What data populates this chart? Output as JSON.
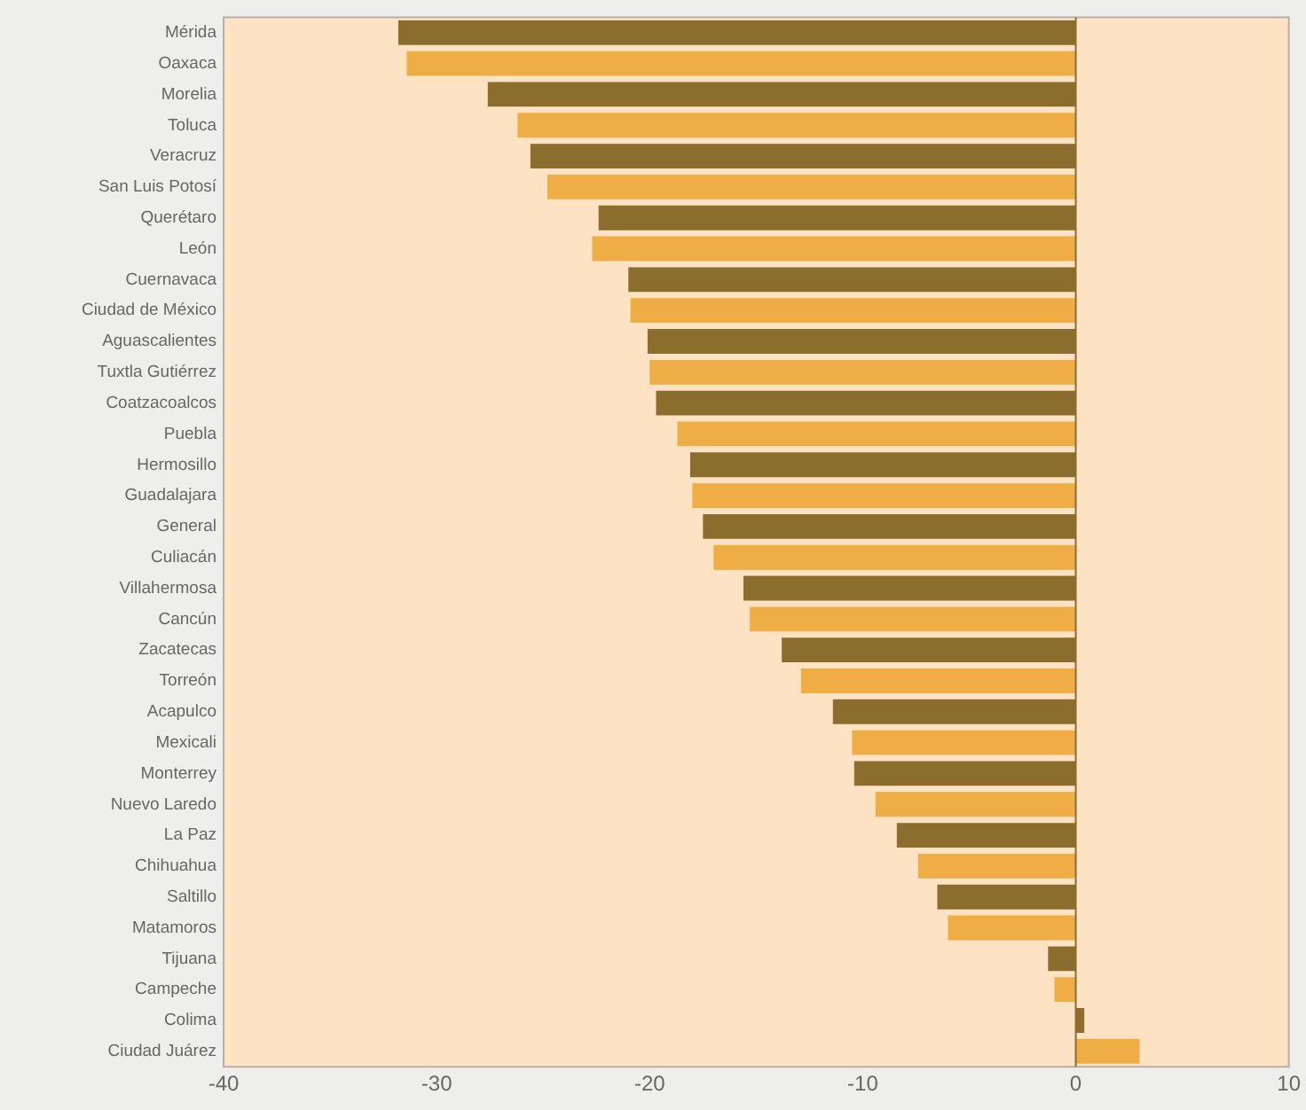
{
  "chart_data": {
    "type": "bar",
    "orientation": "horizontal",
    "categories": [
      "Mérida",
      "Oaxaca",
      "Morelia",
      "Toluca",
      "Veracruz",
      "San Luis Potosí",
      "Querétaro",
      "León",
      "Cuernavaca",
      "Ciudad de México",
      "Aguascalientes",
      "Tuxtla Gutiérrez",
      "Coatzacoalcos",
      "Puebla",
      "Hermosillo",
      "Guadalajara",
      "General",
      "Culiacán",
      "Villahermosa",
      "Cancún",
      "Zacatecas",
      "Torreón",
      "Acapulco",
      "Mexicali",
      "Monterrey",
      "Nuevo Laredo",
      "La Paz",
      "Chihuahua",
      "Saltillo",
      "Matamoros",
      "Tijuana",
      "Campeche",
      "Colima",
      "Ciudad Juárez"
    ],
    "values": [
      -31.8,
      -31.4,
      -27.6,
      -26.2,
      -25.6,
      -24.8,
      -22.4,
      -22.7,
      -21.0,
      -20.9,
      -20.1,
      -20.0,
      -19.7,
      -18.7,
      -18.1,
      -18.0,
      -17.5,
      -17.0,
      -15.6,
      -15.3,
      -13.8,
      -12.9,
      -11.4,
      -10.5,
      -10.4,
      -9.4,
      -8.4,
      -7.4,
      -6.5,
      -6.0,
      -1.3,
      -1.0,
      0.4,
      3.0
    ],
    "colors": [
      "#8b6d2e",
      "#efad45",
      "#8b6d2e",
      "#efad45",
      "#8b6d2e",
      "#efad45",
      "#8b6d2e",
      "#efad45",
      "#8b6d2e",
      "#efad45",
      "#8b6d2e",
      "#efad45",
      "#8b6d2e",
      "#efad45",
      "#8b6d2e",
      "#efad45",
      "#8b6d2e",
      "#efad45",
      "#8b6d2e",
      "#efad45",
      "#8b6d2e",
      "#efad45",
      "#8b6d2e",
      "#efad45",
      "#8b6d2e",
      "#efad45",
      "#8b6d2e",
      "#efad45",
      "#8b6d2e",
      "#efad45",
      "#8b6d2e",
      "#efad45",
      "#8b6d2e",
      "#efad45"
    ],
    "xlim": [
      -40,
      10
    ],
    "xticks": [
      -40,
      -30,
      -20,
      -10,
      0,
      10
    ],
    "ref_lines": [
      {
        "axis": "x",
        "value": 0,
        "color": "#8b6d2e"
      }
    ],
    "grid": false,
    "legend": false
  }
}
